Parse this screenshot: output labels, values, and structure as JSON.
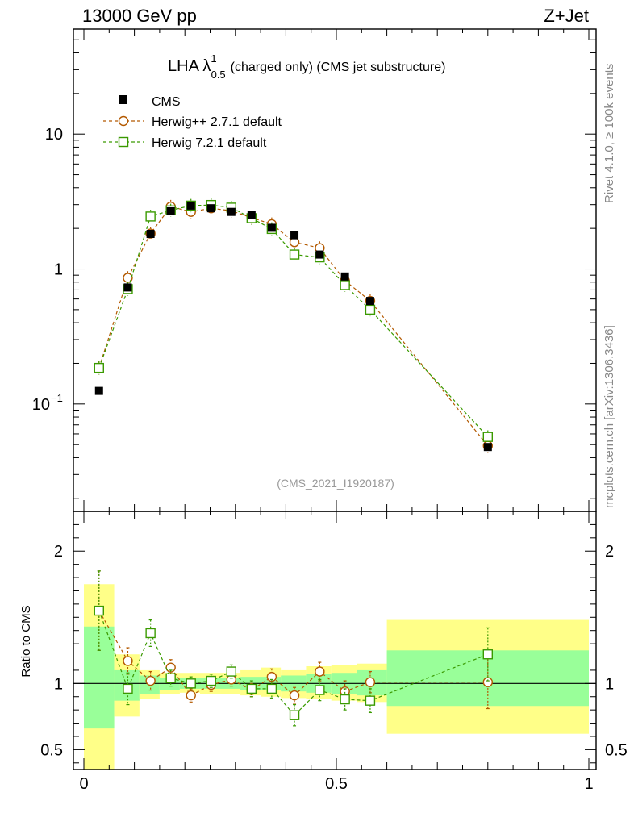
{
  "header": {
    "energy_label": "13000 GeV pp",
    "process_label": "Z+Jet"
  },
  "side_labels": {
    "rivet": "Rivet 4.1.0, ≥ 100k events",
    "mcplots": "mcplots.cern.ch [arXiv:1306.3436]"
  },
  "chart_data": {
    "type": "scatter",
    "title": {
      "main": "LHA λ",
      "superscript": "1",
      "subscript": "0.5",
      "rest": "(charged only) (CMS jet substructure)"
    },
    "analysis_id": "(CMS_2021_I1920187)",
    "xlim": [
      0,
      1
    ],
    "ylim_log": [
      0.016,
      60
    ],
    "ratio_ylim": [
      0.35,
      2.3
    ],
    "ratio_ylabel": "Ratio to CMS",
    "x_ticks": [
      {
        "value": 0,
        "label": "0"
      },
      {
        "value": 0.5,
        "label": "0.5"
      },
      {
        "value": 1,
        "label": "1"
      }
    ],
    "y_ticks_main": [
      {
        "value": 10,
        "label": "10"
      },
      {
        "value": 1,
        "label": "1"
      },
      {
        "value": 0.1,
        "label": "10",
        "sup": "−1"
      }
    ],
    "y_ticks_ratio": [
      {
        "value": 2,
        "label": "2"
      },
      {
        "value": 1,
        "label": "1"
      },
      {
        "value": 0.5,
        "label": "0.5"
      }
    ],
    "legend": {
      "position": "top-left",
      "entries": [
        {
          "name": "CMS",
          "marker": "filled-square",
          "color": "#000000"
        },
        {
          "name": "Herwig++ 2.7.1 default",
          "marker": "open-circle",
          "color": "#b35900"
        },
        {
          "name": "Herwig 7.2.1 default",
          "marker": "open-square",
          "color": "#3a9a00"
        }
      ]
    },
    "data": {
      "name": "CMS",
      "x": [
        0.03,
        0.087,
        0.132,
        0.172,
        0.212,
        0.252,
        0.292,
        0.332,
        0.372,
        0.417,
        0.467,
        0.517,
        0.567,
        0.8
      ],
      "y": [
        0.125,
        0.73,
        1.82,
        2.68,
        2.95,
        2.82,
        2.65,
        2.5,
        2.02,
        1.78,
        1.28,
        0.88,
        0.58,
        0.048
      ]
    },
    "series": [
      {
        "name": "Herwig++ 2.7.1 default",
        "color": "#b35900",
        "marker": "circle",
        "x": [
          0.03,
          0.087,
          0.132,
          0.172,
          0.212,
          0.252,
          0.292,
          0.332,
          0.372,
          0.417,
          0.467,
          0.517,
          0.567,
          0.8
        ],
        "y": [
          0.185,
          0.86,
          1.83,
          2.9,
          2.65,
          2.82,
          2.7,
          2.4,
          2.15,
          1.58,
          1.43,
          0.82,
          0.58,
          0.049
        ],
        "ratio": [
          1.55,
          1.17,
          1.02,
          1.12,
          0.91,
          0.99,
          1.03,
          0.95,
          1.05,
          0.91,
          1.09,
          0.94,
          1.01,
          1.01
        ],
        "ratio_err": [
          0.3,
          0.1,
          0.07,
          0.06,
          0.05,
          0.05,
          0.05,
          0.05,
          0.06,
          0.06,
          0.07,
          0.08,
          0.08,
          0.2
        ]
      },
      {
        "name": "Herwig 7.2.1 default",
        "color": "#3a9a00",
        "marker": "square",
        "x": [
          0.03,
          0.087,
          0.132,
          0.172,
          0.212,
          0.252,
          0.292,
          0.332,
          0.372,
          0.417,
          0.467,
          0.517,
          0.567,
          0.8
        ],
        "y": [
          0.185,
          0.71,
          2.45,
          2.72,
          2.95,
          2.98,
          2.85,
          2.38,
          1.98,
          1.28,
          1.22,
          0.76,
          0.5,
          0.057
        ],
        "ratio": [
          1.55,
          0.96,
          1.38,
          1.04,
          1.0,
          1.02,
          1.09,
          0.96,
          0.96,
          0.76,
          0.95,
          0.88,
          0.87,
          1.22
        ],
        "ratio_err": [
          0.3,
          0.12,
          0.1,
          0.06,
          0.05,
          0.05,
          0.05,
          0.06,
          0.07,
          0.08,
          0.08,
          0.08,
          0.09,
          0.2
        ]
      }
    ],
    "ratio_bands": {
      "bins": [
        [
          0.0,
          0.06
        ],
        [
          0.06,
          0.11
        ],
        [
          0.11,
          0.15
        ],
        [
          0.15,
          0.19
        ],
        [
          0.19,
          0.23
        ],
        [
          0.23,
          0.27
        ],
        [
          0.27,
          0.31
        ],
        [
          0.31,
          0.35
        ],
        [
          0.35,
          0.39
        ],
        [
          0.39,
          0.44
        ],
        [
          0.44,
          0.49
        ],
        [
          0.49,
          0.54
        ],
        [
          0.54,
          0.6
        ],
        [
          0.6,
          1.0
        ]
      ],
      "stat_lo": [
        0.66,
        0.87,
        0.92,
        0.95,
        0.96,
        0.96,
        0.96,
        0.95,
        0.95,
        0.94,
        0.93,
        0.92,
        0.91,
        0.83
      ],
      "stat_hi": [
        1.43,
        1.1,
        1.06,
        1.04,
        1.04,
        1.04,
        1.04,
        1.05,
        1.05,
        1.06,
        1.07,
        1.08,
        1.1,
        1.25
      ],
      "total_lo": [
        0.3,
        0.75,
        0.88,
        0.92,
        0.93,
        0.92,
        0.92,
        0.91,
        0.9,
        0.89,
        0.88,
        0.87,
        0.86,
        0.62
      ],
      "total_hi": [
        1.75,
        1.22,
        1.1,
        1.08,
        1.08,
        1.08,
        1.08,
        1.1,
        1.12,
        1.1,
        1.13,
        1.14,
        1.15,
        1.48
      ]
    }
  }
}
